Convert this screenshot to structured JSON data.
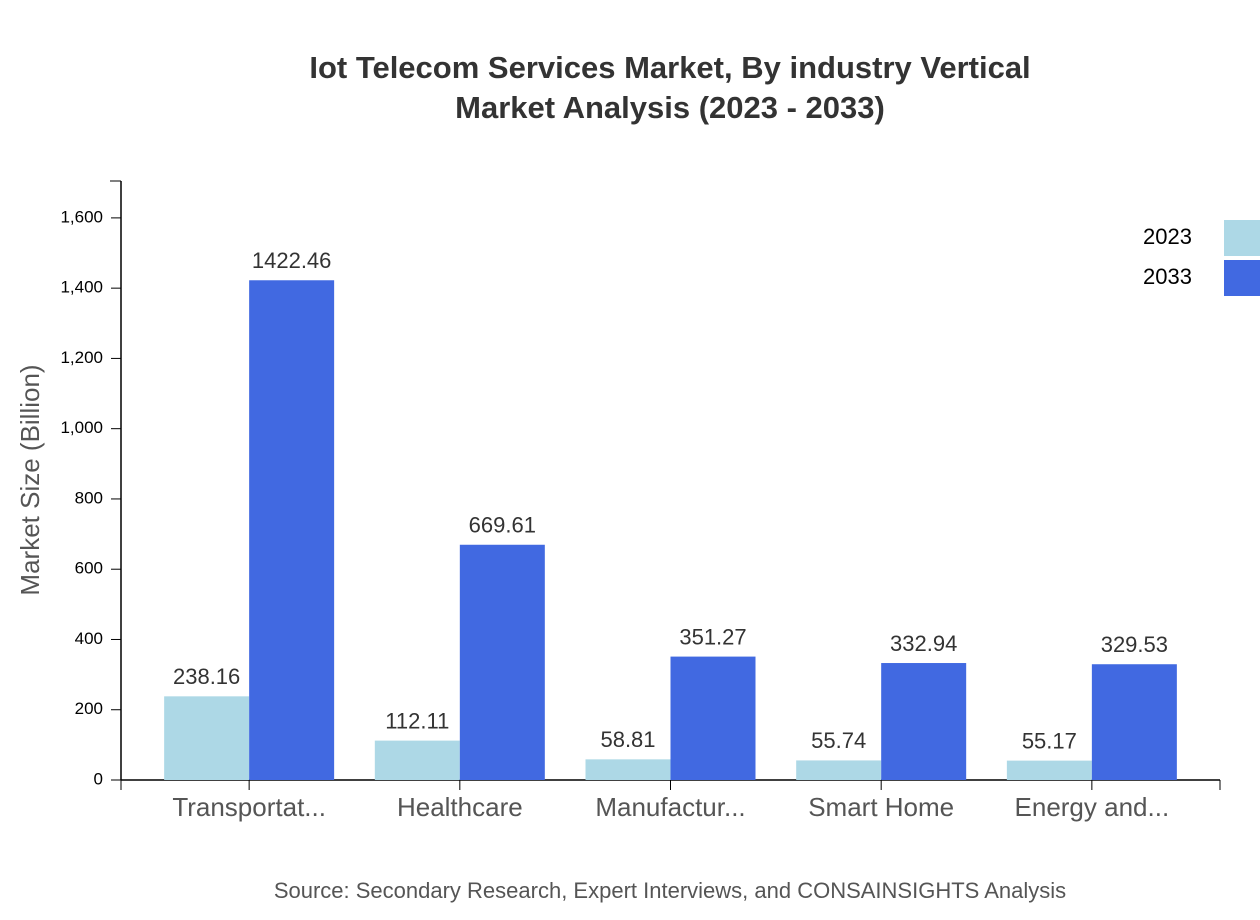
{
  "chart_data": {
    "type": "bar",
    "title": "Iot Telecom Services Market, By industry Vertical",
    "subtitle": "Market Analysis (2023 - 2033)",
    "y_label": "Market Size (Billion)",
    "source": "Source: Secondary Research, Expert Interviews, and CONSAINSIGHTS Analysis",
    "categories": [
      "Transportat...",
      "Healthcare",
      "Manufactur...",
      "Smart Home",
      "Energy and..."
    ],
    "series": [
      {
        "name": "2023",
        "color": "#add8e6",
        "values": [
          238.16,
          112.11,
          58.81,
          55.74,
          55.17
        ]
      },
      {
        "name": "2033",
        "color": "#4169e1",
        "values": [
          1422.46,
          669.61,
          351.27,
          332.94,
          329.53
        ]
      }
    ],
    "ylim": [
      0,
      1705
    ],
    "yticks": [
      0,
      200,
      400,
      600,
      800,
      {
        "value": 1000,
        "label": "1,000"
      },
      {
        "value": 1200,
        "label": "1,200"
      },
      {
        "value": 1400,
        "label": "1,400"
      },
      {
        "value": 1600,
        "label": "1,600"
      }
    ],
    "grid": false,
    "legend": "top-right"
  }
}
